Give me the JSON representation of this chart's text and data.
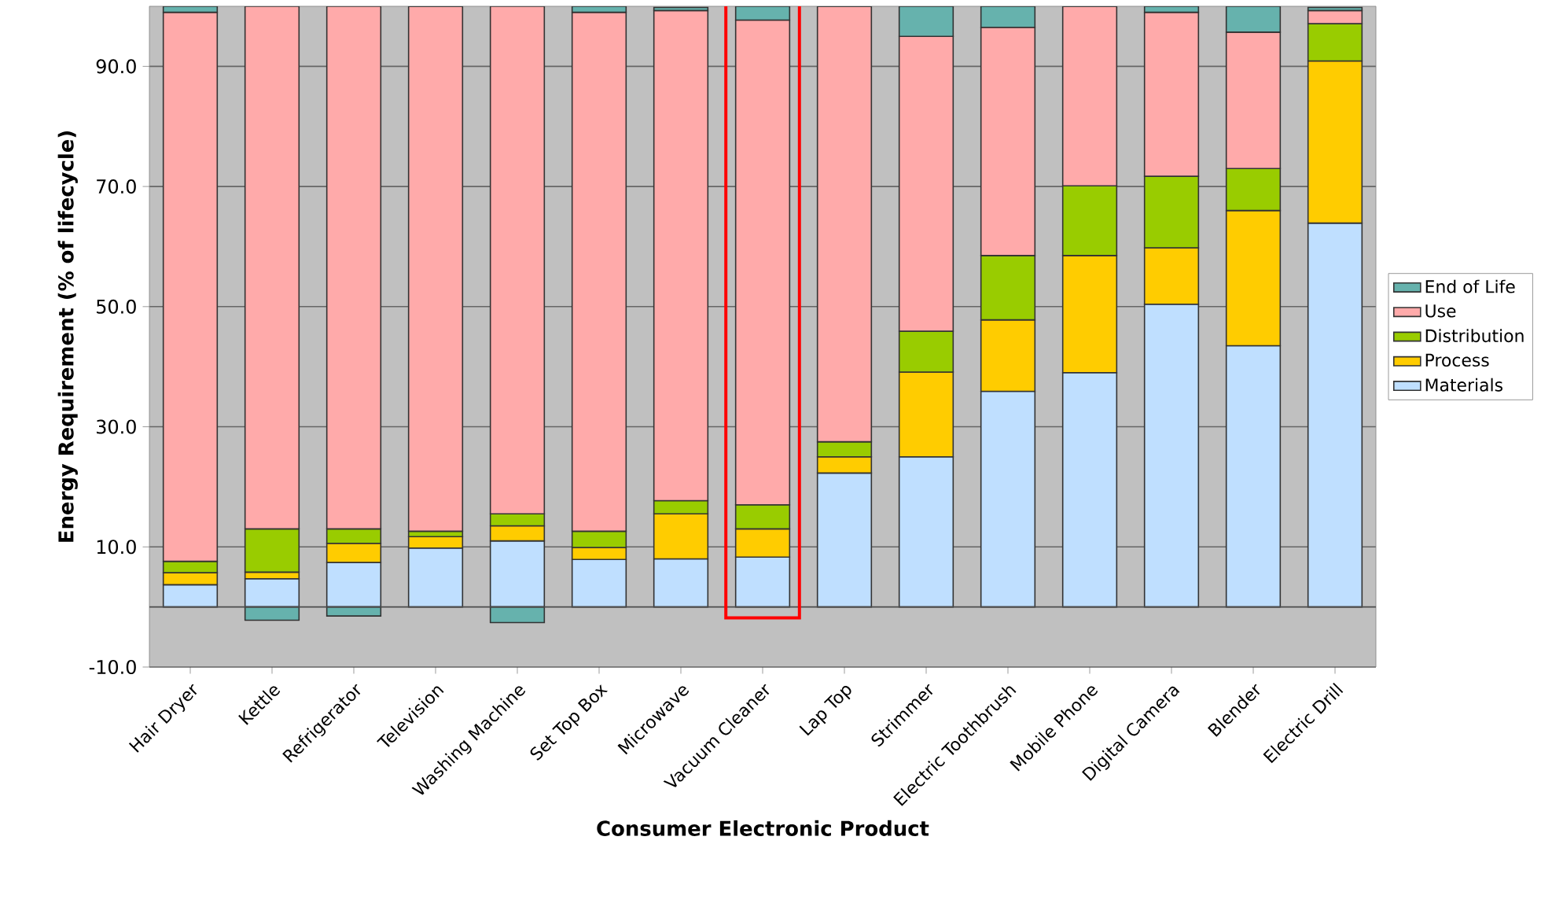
{
  "chart_data": {
    "type": "bar",
    "stacked": true,
    "xlabel": "Consumer Electronic Product",
    "ylabel": "Energy Requirement (% of lifecycle)",
    "categories": [
      "Hair Dryer",
      "Kettle",
      "Refrigerator",
      "Television",
      "Washing Machine",
      "Set Top Box",
      "Microwave",
      "Vacuum Cleaner",
      "Lap Top",
      "Strimmer",
      "Electric Toothbrush",
      "Mobile Phone",
      "Digital Camera",
      "Blender",
      "Electric Drill"
    ],
    "series": [
      {
        "name": "Materials",
        "color": "#bfdfff",
        "values": [
          3.7,
          4.7,
          7.4,
          9.8,
          11.0,
          7.9,
          8.0,
          8.3,
          22.3,
          25.0,
          35.9,
          39.0,
          50.4,
          43.5,
          63.9
        ]
      },
      {
        "name": "Process",
        "color": "#ffcc00",
        "values": [
          2.0,
          1.1,
          3.2,
          1.9,
          2.5,
          2.0,
          7.5,
          4.7,
          2.7,
          14.1,
          11.9,
          19.5,
          9.4,
          22.5,
          27.0
        ]
      },
      {
        "name": "Distribution",
        "color": "#99cc00",
        "values": [
          1.9,
          7.2,
          2.4,
          0.9,
          2.0,
          2.7,
          2.2,
          4.0,
          2.5,
          6.8,
          10.7,
          11.6,
          11.9,
          7.0,
          6.2
        ]
      },
      {
        "name": "Use",
        "color": "#ffaaaa",
        "values": [
          91.4,
          87.0,
          87.0,
          87.4,
          84.5,
          86.4,
          81.6,
          80.7,
          72.5,
          49.1,
          38.0,
          29.9,
          27.3,
          22.7,
          2.2
        ]
      },
      {
        "name": "End of Life",
        "color": "#66b2ad",
        "values": [
          1.0,
          -2.2,
          -1.5,
          0,
          -2.6,
          1.0,
          0.5,
          2.3,
          0,
          5.0,
          3.5,
          0,
          1.0,
          4.3,
          0.5
        ]
      }
    ],
    "ylim": [
      -10,
      100
    ],
    "yticks": [
      {
        "value": -10,
        "label": "-10.0"
      },
      {
        "value": 10,
        "label": "10.0"
      },
      {
        "value": 30,
        "label": "30.0"
      },
      {
        "value": 50,
        "label": "50.0"
      },
      {
        "value": 70,
        "label": "70.0"
      },
      {
        "value": 90,
        "label": "90.0"
      }
    ],
    "grid": "y",
    "legend": "right"
  }
}
